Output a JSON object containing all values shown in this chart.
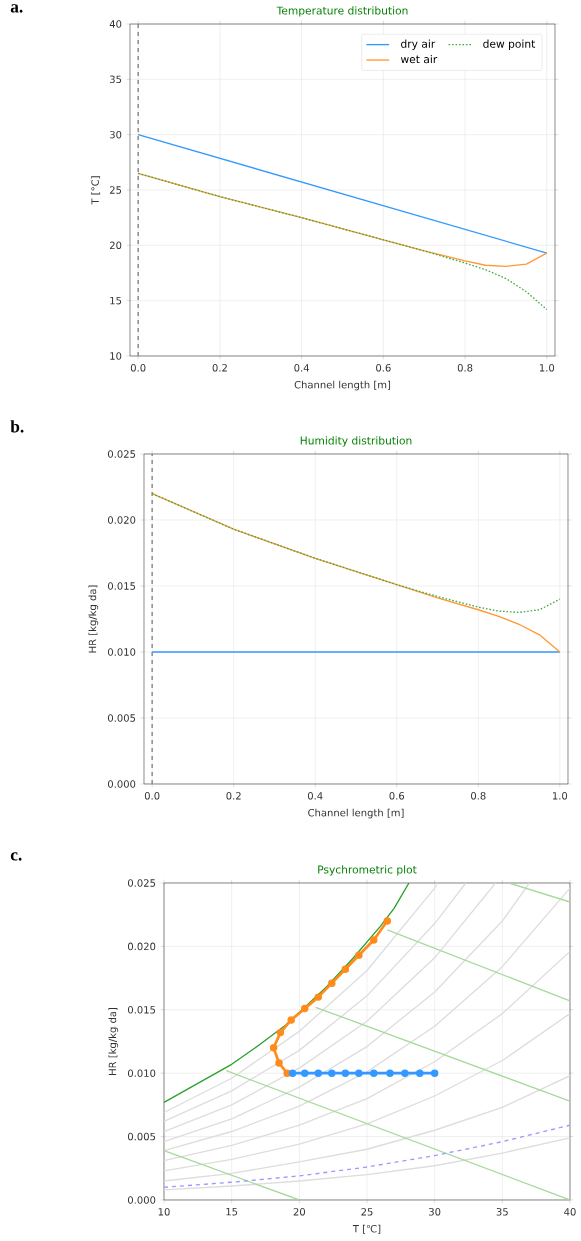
{
  "chart_data": [
    {
      "type": "line",
      "title": "Temperature distribution",
      "xlabel": "Channel length [m]",
      "ylabel": "T [°C]",
      "annotations": [
        "a."
      ],
      "xlim": [
        -0.02,
        1.02
      ],
      "ylim": [
        10,
        40
      ],
      "xticks": [
        {
          "value": 0,
          "label": "0.0"
        },
        {
          "value": 0.2,
          "label": "0.2"
        },
        {
          "value": 0.4,
          "label": "0.4"
        },
        {
          "value": 0.6,
          "label": "0.6"
        },
        {
          "value": 0.8,
          "label": "0.8"
        },
        {
          "value": 1,
          "label": "1.0"
        }
      ],
      "yticks": [
        10,
        15,
        20,
        25,
        30,
        35,
        40
      ],
      "grid": true,
      "legend": "top right",
      "ref_lines": [
        {
          "axis": "x",
          "value": 0,
          "color": "#808080",
          "line_style": "dashed"
        }
      ],
      "series": [
        {
          "name": "dry air",
          "color": "#3399ff",
          "x": [
            0,
            1
          ],
          "values": [
            30,
            19.3
          ]
        },
        {
          "name": "wet air",
          "color": "#ff9933",
          "x": [
            0,
            0.2,
            0.4,
            0.6,
            0.7,
            0.8,
            0.85,
            0.9,
            0.95,
            1
          ],
          "values": [
            26.5,
            24.4,
            22.5,
            20.5,
            19.5,
            18.6,
            18.2,
            18.1,
            18.3,
            19.3
          ]
        },
        {
          "name": "dew point",
          "color": "#44aa44",
          "line_style": "dotted",
          "x": [
            0,
            0.2,
            0.4,
            0.6,
            0.7,
            0.8,
            0.85,
            0.9,
            0.95,
            1
          ],
          "values": [
            26.5,
            24.4,
            22.5,
            20.5,
            19.5,
            18.4,
            17.8,
            17.0,
            15.8,
            14.2
          ]
        }
      ]
    },
    {
      "type": "line",
      "title": "Humidity distribution",
      "xlabel": "Channel length [m]",
      "ylabel": "HR [kg/kg da]",
      "annotations": [
        "b."
      ],
      "xlim": [
        -0.02,
        1.02
      ],
      "ylim": [
        0,
        0.025
      ],
      "xticks": [
        {
          "value": 0,
          "label": "0.0"
        },
        {
          "value": 0.2,
          "label": "0.2"
        },
        {
          "value": 0.4,
          "label": "0.4"
        },
        {
          "value": 0.6,
          "label": "0.6"
        },
        {
          "value": 0.8,
          "label": "0.8"
        },
        {
          "value": 1,
          "label": "1.0"
        }
      ],
      "yticks": [
        {
          "value": 0,
          "label": "0.000"
        },
        {
          "value": 0.005,
          "label": "0.005"
        },
        {
          "value": 0.01,
          "label": "0.010"
        },
        {
          "value": 0.015,
          "label": "0.015"
        },
        {
          "value": 0.02,
          "label": "0.020"
        },
        {
          "value": 0.025,
          "label": "0.025"
        }
      ],
      "grid": true,
      "ref_lines": [
        {
          "axis": "x",
          "value": 0,
          "color": "#808080",
          "line_style": "dashed"
        }
      ],
      "series": [
        {
          "color": "#3399ff",
          "x": [
            0,
            1
          ],
          "values": [
            0.01,
            0.01
          ]
        },
        {
          "color": "#ff9933",
          "x": [
            0,
            0.2,
            0.4,
            0.6,
            0.7,
            0.8,
            0.85,
            0.9,
            0.95,
            1
          ],
          "values": [
            0.022,
            0.0193,
            0.0171,
            0.0151,
            0.0141,
            0.0132,
            0.0127,
            0.0121,
            0.0113,
            0.01
          ]
        },
        {
          "color": "#44aa44",
          "line_style": "dotted",
          "x": [
            0,
            0.2,
            0.4,
            0.6,
            0.7,
            0.8,
            0.85,
            0.9,
            0.95,
            1
          ],
          "values": [
            0.022,
            0.0193,
            0.0171,
            0.0151,
            0.0142,
            0.0134,
            0.0131,
            0.013,
            0.0132,
            0.014
          ]
        }
      ]
    },
    {
      "type": "line",
      "title": "Psychrometric plot",
      "xlabel": "T [℃]",
      "ylabel": "HR [kg/kg da]",
      "annotations": [
        "c."
      ],
      "xlim": [
        10,
        40
      ],
      "ylim": [
        0,
        0.025
      ],
      "xticks": [
        10,
        15,
        20,
        25,
        30,
        35,
        40
      ],
      "yticks": [
        {
          "value": 0,
          "label": "0.000"
        },
        {
          "value": 0.005,
          "label": "0.005"
        },
        {
          "value": 0.01,
          "label": "0.010"
        },
        {
          "value": 0.015,
          "label": "0.015"
        },
        {
          "value": 0.02,
          "label": "0.020"
        },
        {
          "value": 0.025,
          "label": "0.025"
        }
      ],
      "grid": true,
      "series": [
        {
          "color": "#dddddd",
          "x": [
            10,
            15,
            20,
            25,
            30,
            35,
            40
          ],
          "values": [
            0.0008,
            0.0011,
            0.0015,
            0.002,
            0.0027,
            0.0037,
            0.0049
          ]
        },
        {
          "color": "#dddddd",
          "x": [
            10,
            15,
            20,
            25,
            30,
            35,
            40
          ],
          "values": [
            0.0015,
            0.0021,
            0.003,
            0.004,
            0.0055,
            0.0073,
            0.0098
          ]
        },
        {
          "color": "#dddddd",
          "x": [
            10,
            15,
            20,
            25,
            30,
            35,
            40
          ],
          "values": [
            0.0023,
            0.0032,
            0.0044,
            0.006,
            0.0082,
            0.011,
            0.0147
          ]
        },
        {
          "color": "#dddddd",
          "x": [
            10,
            15,
            20,
            25,
            30,
            35,
            40
          ],
          "values": [
            0.0031,
            0.0043,
            0.0059,
            0.008,
            0.0109,
            0.0147,
            0.0196
          ]
        },
        {
          "color": "#dddddd",
          "x": [
            10,
            15,
            20,
            25,
            30,
            35,
            40
          ],
          "values": [
            0.0039,
            0.0054,
            0.0074,
            0.0101,
            0.0137,
            0.0184,
            0.0246
          ]
        },
        {
          "color": "#dddddd",
          "x": [
            10,
            15,
            20,
            25,
            30,
            35,
            37
          ],
          "values": [
            0.0046,
            0.0064,
            0.0089,
            0.0121,
            0.0164,
            0.022,
            0.025
          ]
        },
        {
          "color": "#dddddd",
          "x": [
            10,
            15,
            20,
            25,
            30,
            34.5
          ],
          "values": [
            0.0054,
            0.0075,
            0.0104,
            0.0141,
            0.0191,
            0.025
          ]
        },
        {
          "color": "#dddddd",
          "x": [
            10,
            15,
            20,
            25,
            30,
            32.3
          ],
          "values": [
            0.0062,
            0.0086,
            0.0118,
            0.0161,
            0.0218,
            0.025
          ]
        },
        {
          "color": "#dddddd",
          "x": [
            10,
            15,
            20,
            25,
            30,
            30.2
          ],
          "values": [
            0.0069,
            0.0096,
            0.0133,
            0.0181,
            0.0246,
            0.025
          ]
        },
        {
          "color": "#a6d99a",
          "x": [
            10,
            20
          ],
          "values": [
            0.0039,
            0
          ]
        },
        {
          "color": "#a6d99a",
          "x": [
            14.6,
            40
          ],
          "values": [
            0.0102,
            0
          ]
        },
        {
          "color": "#a6d99a",
          "x": [
            21.2,
            40
          ],
          "values": [
            0.0152,
            0.0078
          ]
        },
        {
          "color": "#a6d99a",
          "x": [
            26.5,
            40
          ],
          "values": [
            0.0213,
            0.0157
          ]
        },
        {
          "color": "#a6d99a",
          "x": [
            35.5,
            40
          ],
          "values": [
            0.025,
            0.0235
          ]
        },
        {
          "color": "#9999ff",
          "line_style": "dashed",
          "x": [
            10,
            15,
            20,
            25,
            30,
            35,
            40
          ],
          "values": [
            0.001,
            0.0014,
            0.0019,
            0.0026,
            0.0035,
            0.0046,
            0.0059
          ]
        },
        {
          "color": "#2ca02c",
          "x": [
            10,
            15,
            17,
            19,
            22,
            24,
            26,
            27,
            28.1
          ],
          "values": [
            0.0077,
            0.0107,
            0.0122,
            0.0138,
            0.0168,
            0.0191,
            0.0216,
            0.023,
            0.025
          ]
        },
        {
          "color": "#ff8c1a",
          "marker": "circle",
          "x": [
            26.5,
            25.5,
            24.4,
            23.4,
            22.4,
            21.4,
            20.4,
            19.4,
            18.6,
            18.1,
            18.5,
            19.1
          ],
          "values": [
            0.022,
            0.0205,
            0.0193,
            0.0182,
            0.0171,
            0.016,
            0.0151,
            0.0142,
            0.0132,
            0.012,
            0.0108,
            0.01
          ]
        },
        {
          "color": "#3399ff",
          "marker": "circle",
          "x": [
            19.5,
            20.4,
            21.4,
            22.4,
            23.4,
            24.4,
            25.5,
            26.7,
            27.8,
            28.9,
            30.0
          ],
          "values": [
            0.01,
            0.01,
            0.01,
            0.01,
            0.01,
            0.01,
            0.01,
            0.01,
            0.01,
            0.01,
            0.01
          ]
        }
      ]
    }
  ]
}
